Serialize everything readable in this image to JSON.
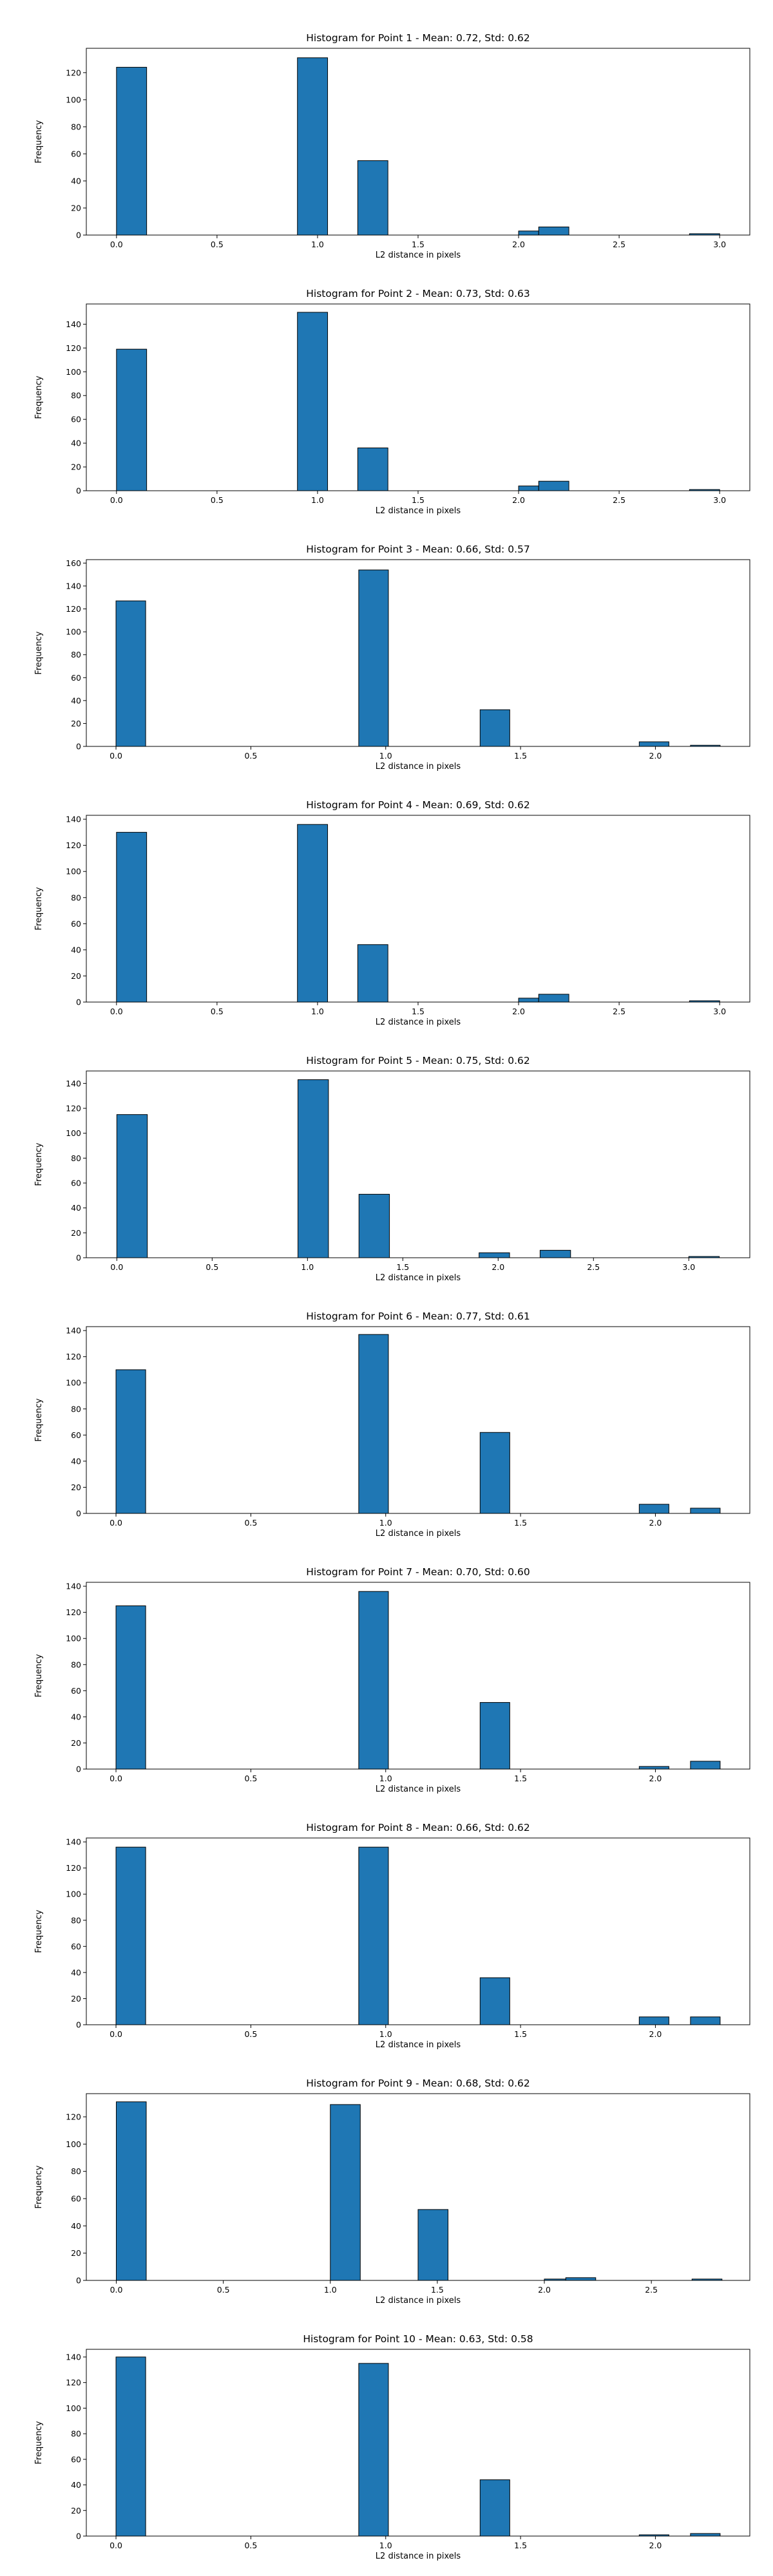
{
  "chart_data": [
    {
      "type": "bar",
      "title": "Histogram for Point 1 - Mean: 0.72, Std: 0.62",
      "xlabel": "L2 distance in pixels",
      "ylabel": "Frequency",
      "xlim": [
        -0.15,
        3.15
      ],
      "ylim": [
        0,
        138
      ],
      "xticks": [
        0.0,
        0.5,
        1.0,
        1.5,
        2.0,
        2.5,
        3.0
      ],
      "xtick_labels": [
        "0.0",
        "0.5",
        "1.0",
        "1.5",
        "2.0",
        "2.5",
        "3.0"
      ],
      "yticks": [
        0,
        20,
        40,
        60,
        80,
        100,
        120
      ],
      "bin_width": 0.15,
      "bins": [
        {
          "x0": 0.0,
          "x1": 0.15,
          "count": 124
        },
        {
          "x0": 0.9,
          "x1": 1.05,
          "count": 131
        },
        {
          "x0": 1.2,
          "x1": 1.35,
          "count": 55
        },
        {
          "x0": 2.0,
          "x1": 2.1,
          "count": 3
        },
        {
          "x0": 2.1,
          "x1": 2.25,
          "count": 6
        },
        {
          "x0": 2.85,
          "x1": 3.0,
          "count": 1
        }
      ]
    },
    {
      "type": "bar",
      "title": "Histogram for Point 2 - Mean: 0.73, Std: 0.63",
      "xlabel": "L2 distance in pixels",
      "ylabel": "Frequency",
      "xlim": [
        -0.15,
        3.15
      ],
      "ylim": [
        0,
        157
      ],
      "xticks": [
        0.0,
        0.5,
        1.0,
        1.5,
        2.0,
        2.5,
        3.0
      ],
      "xtick_labels": [
        "0.0",
        "0.5",
        "1.0",
        "1.5",
        "2.0",
        "2.5",
        "3.0"
      ],
      "yticks": [
        0,
        20,
        40,
        60,
        80,
        100,
        120,
        140
      ],
      "bin_width": 0.15,
      "bins": [
        {
          "x0": 0.0,
          "x1": 0.15,
          "count": 119
        },
        {
          "x0": 0.9,
          "x1": 1.05,
          "count": 150
        },
        {
          "x0": 1.2,
          "x1": 1.35,
          "count": 36
        },
        {
          "x0": 2.0,
          "x1": 2.1,
          "count": 4
        },
        {
          "x0": 2.1,
          "x1": 2.25,
          "count": 8
        },
        {
          "x0": 2.85,
          "x1": 3.0,
          "count": 1
        }
      ]
    },
    {
      "type": "bar",
      "title": "Histogram for Point 3 - Mean: 0.66, Std: 0.57",
      "xlabel": "L2 distance in pixels",
      "ylabel": "Frequency",
      "xlim": [
        -0.11,
        2.35
      ],
      "ylim": [
        0,
        163
      ],
      "xticks": [
        0.0,
        0.5,
        1.0,
        1.5,
        2.0
      ],
      "xtick_labels": [
        "0.0",
        "0.5",
        "1.0",
        "1.5",
        "2.0"
      ],
      "yticks": [
        0,
        20,
        40,
        60,
        80,
        100,
        120,
        140,
        160
      ],
      "bin_width": 0.11,
      "bins": [
        {
          "x0": 0.0,
          "x1": 0.11,
          "count": 127
        },
        {
          "x0": 0.9,
          "x1": 1.01,
          "count": 154
        },
        {
          "x0": 1.35,
          "x1": 1.46,
          "count": 32
        },
        {
          "x0": 1.94,
          "x1": 2.05,
          "count": 4
        },
        {
          "x0": 2.13,
          "x1": 2.24,
          "count": 1
        }
      ]
    },
    {
      "type": "bar",
      "title": "Histogram for Point 4 - Mean: 0.69, Std: 0.62",
      "xlabel": "L2 distance in pixels",
      "ylabel": "Frequency",
      "xlim": [
        -0.15,
        3.15
      ],
      "ylim": [
        0,
        143
      ],
      "xticks": [
        0.0,
        0.5,
        1.0,
        1.5,
        2.0,
        2.5,
        3.0
      ],
      "xtick_labels": [
        "0.0",
        "0.5",
        "1.0",
        "1.5",
        "2.0",
        "2.5",
        "3.0"
      ],
      "yticks": [
        0,
        20,
        40,
        60,
        80,
        100,
        120,
        140
      ],
      "bin_width": 0.15,
      "bins": [
        {
          "x0": 0.0,
          "x1": 0.15,
          "count": 130
        },
        {
          "x0": 0.9,
          "x1": 1.05,
          "count": 136
        },
        {
          "x0": 1.2,
          "x1": 1.35,
          "count": 44
        },
        {
          "x0": 2.0,
          "x1": 2.1,
          "count": 3
        },
        {
          "x0": 2.1,
          "x1": 2.25,
          "count": 6
        },
        {
          "x0": 2.85,
          "x1": 3.0,
          "count": 1
        }
      ]
    },
    {
      "type": "bar",
      "title": "Histogram for Point 5 - Mean: 0.75, Std: 0.62",
      "xlabel": "L2 distance in pixels",
      "ylabel": "Frequency",
      "xlim": [
        -0.16,
        3.32
      ],
      "ylim": [
        0,
        150
      ],
      "xticks": [
        0.0,
        0.5,
        1.0,
        1.5,
        2.0,
        2.5,
        3.0
      ],
      "xtick_labels": [
        "0.0",
        "0.5",
        "1.0",
        "1.5",
        "2.0",
        "2.5",
        "3.0"
      ],
      "yticks": [
        0,
        20,
        40,
        60,
        80,
        100,
        120,
        140
      ],
      "bin_width": 0.16,
      "bins": [
        {
          "x0": 0.0,
          "x1": 0.16,
          "count": 115
        },
        {
          "x0": 0.95,
          "x1": 1.11,
          "count": 143
        },
        {
          "x0": 1.27,
          "x1": 1.43,
          "count": 51
        },
        {
          "x0": 1.9,
          "x1": 2.06,
          "count": 4
        },
        {
          "x0": 2.22,
          "x1": 2.38,
          "count": 6
        },
        {
          "x0": 3.0,
          "x1": 3.16,
          "count": 1
        }
      ]
    },
    {
      "type": "bar",
      "title": "Histogram for Point 6 - Mean: 0.77, Std: 0.61",
      "xlabel": "L2 distance in pixels",
      "ylabel": "Frequency",
      "xlim": [
        -0.11,
        2.35
      ],
      "ylim": [
        0,
        143
      ],
      "xticks": [
        0.0,
        0.5,
        1.0,
        1.5,
        2.0
      ],
      "xtick_labels": [
        "0.0",
        "0.5",
        "1.0",
        "1.5",
        "2.0"
      ],
      "yticks": [
        0,
        20,
        40,
        60,
        80,
        100,
        120,
        140
      ],
      "bin_width": 0.11,
      "bins": [
        {
          "x0": 0.0,
          "x1": 0.11,
          "count": 110
        },
        {
          "x0": 0.9,
          "x1": 1.01,
          "count": 137
        },
        {
          "x0": 1.35,
          "x1": 1.46,
          "count": 62
        },
        {
          "x0": 1.94,
          "x1": 2.05,
          "count": 7
        },
        {
          "x0": 2.13,
          "x1": 2.24,
          "count": 4
        }
      ]
    },
    {
      "type": "bar",
      "title": "Histogram for Point 7 - Mean: 0.70, Std: 0.60",
      "xlabel": "L2 distance in pixels",
      "ylabel": "Frequency",
      "xlim": [
        -0.11,
        2.35
      ],
      "ylim": [
        0,
        143
      ],
      "xticks": [
        0.0,
        0.5,
        1.0,
        1.5,
        2.0
      ],
      "xtick_labels": [
        "0.0",
        "0.5",
        "1.0",
        "1.5",
        "2.0"
      ],
      "yticks": [
        0,
        20,
        40,
        60,
        80,
        100,
        120,
        140
      ],
      "bin_width": 0.11,
      "bins": [
        {
          "x0": 0.0,
          "x1": 0.11,
          "count": 125
        },
        {
          "x0": 0.9,
          "x1": 1.01,
          "count": 136
        },
        {
          "x0": 1.35,
          "x1": 1.46,
          "count": 51
        },
        {
          "x0": 1.94,
          "x1": 2.05,
          "count": 2
        },
        {
          "x0": 2.13,
          "x1": 2.24,
          "count": 6
        }
      ]
    },
    {
      "type": "bar",
      "title": "Histogram for Point 8 - Mean: 0.66, Std: 0.62",
      "xlabel": "L2 distance in pixels",
      "ylabel": "Frequency",
      "xlim": [
        -0.11,
        2.35
      ],
      "ylim": [
        0,
        143
      ],
      "xticks": [
        0.0,
        0.5,
        1.0,
        1.5,
        2.0
      ],
      "xtick_labels": [
        "0.0",
        "0.5",
        "1.0",
        "1.5",
        "2.0"
      ],
      "yticks": [
        0,
        20,
        40,
        60,
        80,
        100,
        120,
        140
      ],
      "bin_width": 0.11,
      "bins": [
        {
          "x0": 0.0,
          "x1": 0.11,
          "count": 136
        },
        {
          "x0": 0.9,
          "x1": 1.01,
          "count": 136
        },
        {
          "x0": 1.35,
          "x1": 1.46,
          "count": 36
        },
        {
          "x0": 1.94,
          "x1": 2.05,
          "count": 6
        },
        {
          "x0": 2.13,
          "x1": 2.24,
          "count": 6
        }
      ]
    },
    {
      "type": "bar",
      "title": "Histogram for Point 9 - Mean: 0.68, Std: 0.62",
      "xlabel": "L2 distance in pixels",
      "ylabel": "Frequency",
      "xlim": [
        -0.14,
        2.96
      ],
      "ylim": [
        0,
        137
      ],
      "xticks": [
        0.0,
        0.5,
        1.0,
        1.5,
        2.0,
        2.5
      ],
      "xtick_labels": [
        "0.0",
        "0.5",
        "1.0",
        "1.5",
        "2.0",
        "2.5"
      ],
      "yticks": [
        0,
        20,
        40,
        60,
        80,
        100,
        120
      ],
      "bin_width": 0.14,
      "bins": [
        {
          "x0": 0.0,
          "x1": 0.14,
          "count": 131
        },
        {
          "x0": 1.0,
          "x1": 1.14,
          "count": 129
        },
        {
          "x0": 1.41,
          "x1": 1.55,
          "count": 52
        },
        {
          "x0": 2.0,
          "x1": 2.1,
          "count": 1
        },
        {
          "x0": 2.1,
          "x1": 2.24,
          "count": 2
        },
        {
          "x0": 2.69,
          "x1": 2.83,
          "count": 1
        }
      ]
    },
    {
      "type": "bar",
      "title": "Histogram for Point 10 - Mean: 0.63, Std: 0.58",
      "xlabel": "L2 distance in pixels",
      "ylabel": "Frequency",
      "xlim": [
        -0.11,
        2.35
      ],
      "ylim": [
        0,
        146
      ],
      "xticks": [
        0.0,
        0.5,
        1.0,
        1.5,
        2.0
      ],
      "xtick_labels": [
        "0.0",
        "0.5",
        "1.0",
        "1.5",
        "2.0"
      ],
      "yticks": [
        0,
        20,
        40,
        60,
        80,
        100,
        120,
        140
      ],
      "bin_width": 0.11,
      "bins": [
        {
          "x0": 0.0,
          "x1": 0.11,
          "count": 140
        },
        {
          "x0": 0.9,
          "x1": 1.01,
          "count": 135
        },
        {
          "x0": 1.35,
          "x1": 1.46,
          "count": 44
        },
        {
          "x0": 1.94,
          "x1": 2.05,
          "count": 1
        },
        {
          "x0": 2.13,
          "x1": 2.24,
          "count": 2
        }
      ]
    }
  ],
  "style": {
    "bar_color": "#1f77b4",
    "edge_color": "#000000",
    "axis_color": "#000000",
    "background": "#ffffff"
  }
}
